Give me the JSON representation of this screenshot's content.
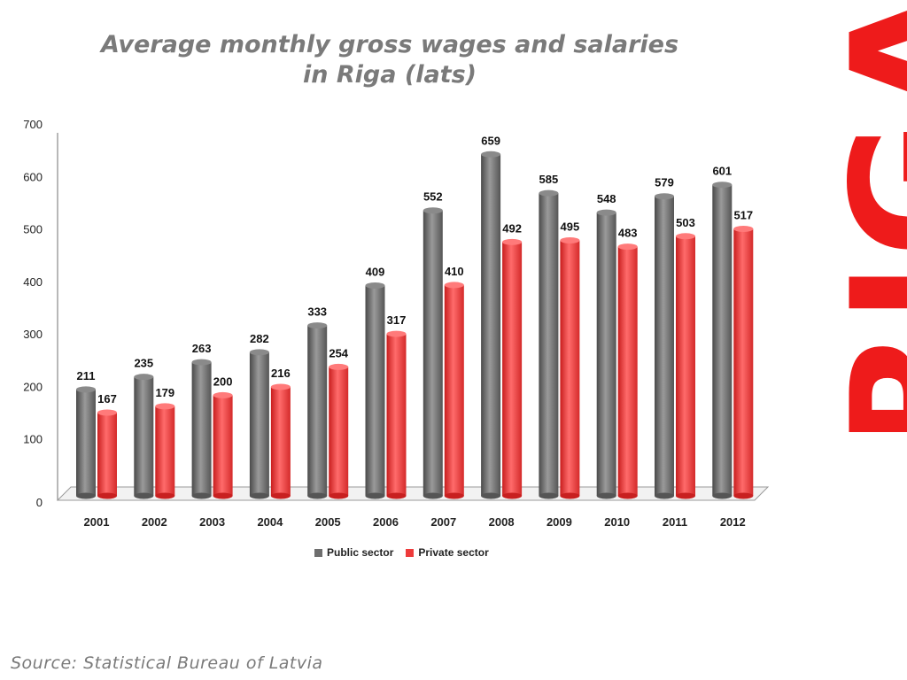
{
  "chart_data": {
    "type": "bar",
    "title_lines": [
      "Average monthly gross wages and salaries",
      "in Riga (lats)"
    ],
    "categories": [
      "2001",
      "2002",
      "2003",
      "2004",
      "2005",
      "2006",
      "2007",
      "2008",
      "2009",
      "2010",
      "2011",
      "2012"
    ],
    "series": [
      {
        "name": "Public sector",
        "color": "#6e6e6e",
        "values": [
          211,
          235,
          263,
          282,
          333,
          409,
          552,
          659,
          585,
          548,
          579,
          601
        ]
      },
      {
        "name": "Private sector",
        "color": "#ee3b3b",
        "values": [
          167,
          179,
          200,
          216,
          254,
          317,
          410,
          492,
          495,
          483,
          503,
          517
        ]
      }
    ],
    "ylim": [
      0,
      700
    ],
    "yticks": [
      "0",
      "100",
      "200",
      "300",
      "400",
      "500",
      "600",
      "700"
    ],
    "grid": false,
    "legend": "bottom"
  },
  "brand": "RIGA",
  "source": "Source: Statistical Bureau of Latvia"
}
